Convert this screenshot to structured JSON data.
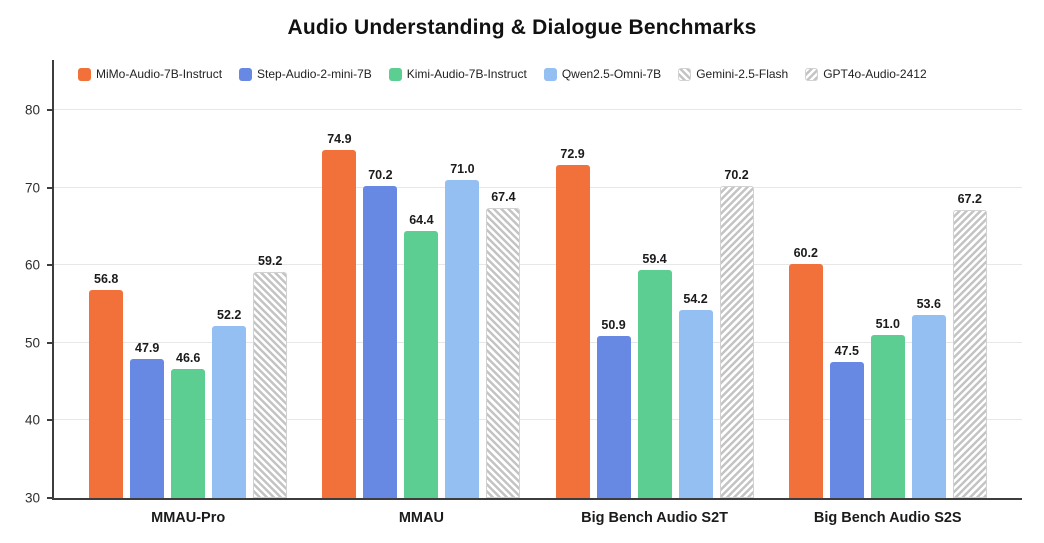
{
  "chart_data": {
    "type": "bar",
    "title": "Audio Understanding & Dialogue Benchmarks",
    "categories": [
      "MMAU-Pro",
      "MMAU",
      "Big Bench Audio S2T",
      "Big Bench Audio S2S"
    ],
    "series": [
      {
        "name": "MiMo-Audio-7B-Instruct",
        "color": "#F2713B",
        "pattern": "solid",
        "values": [
          56.8,
          74.9,
          72.9,
          60.2
        ]
      },
      {
        "name": "Step-Audio-2-mini-7B",
        "color": "#6789E4",
        "pattern": "solid",
        "values": [
          47.9,
          70.2,
          50.9,
          47.5
        ]
      },
      {
        "name": "Kimi-Audio-7B-Instruct",
        "color": "#5DCE92",
        "pattern": "solid",
        "values": [
          46.6,
          64.4,
          59.4,
          51.0
        ]
      },
      {
        "name": "Qwen2.5-Omni-7B",
        "color": "#93BFF2",
        "pattern": "solid",
        "values": [
          52.2,
          71.0,
          54.2,
          53.6
        ]
      },
      {
        "name": "Gemini-2.5-Flash",
        "color": "#C4C4C4",
        "pattern": "hatch-forward",
        "values": [
          59.2,
          67.4,
          null,
          null
        ]
      },
      {
        "name": "GPT4o-Audio-2412",
        "color": "#C4C4C4",
        "pattern": "hatch-back",
        "values": [
          null,
          null,
          70.2,
          67.2
        ]
      }
    ],
    "ylim": [
      30,
      86.5
    ],
    "yticks": [
      30,
      40,
      50,
      60,
      70,
      80
    ],
    "grid": true,
    "legend_position": "top-left",
    "value_label_decimals": 1
  }
}
